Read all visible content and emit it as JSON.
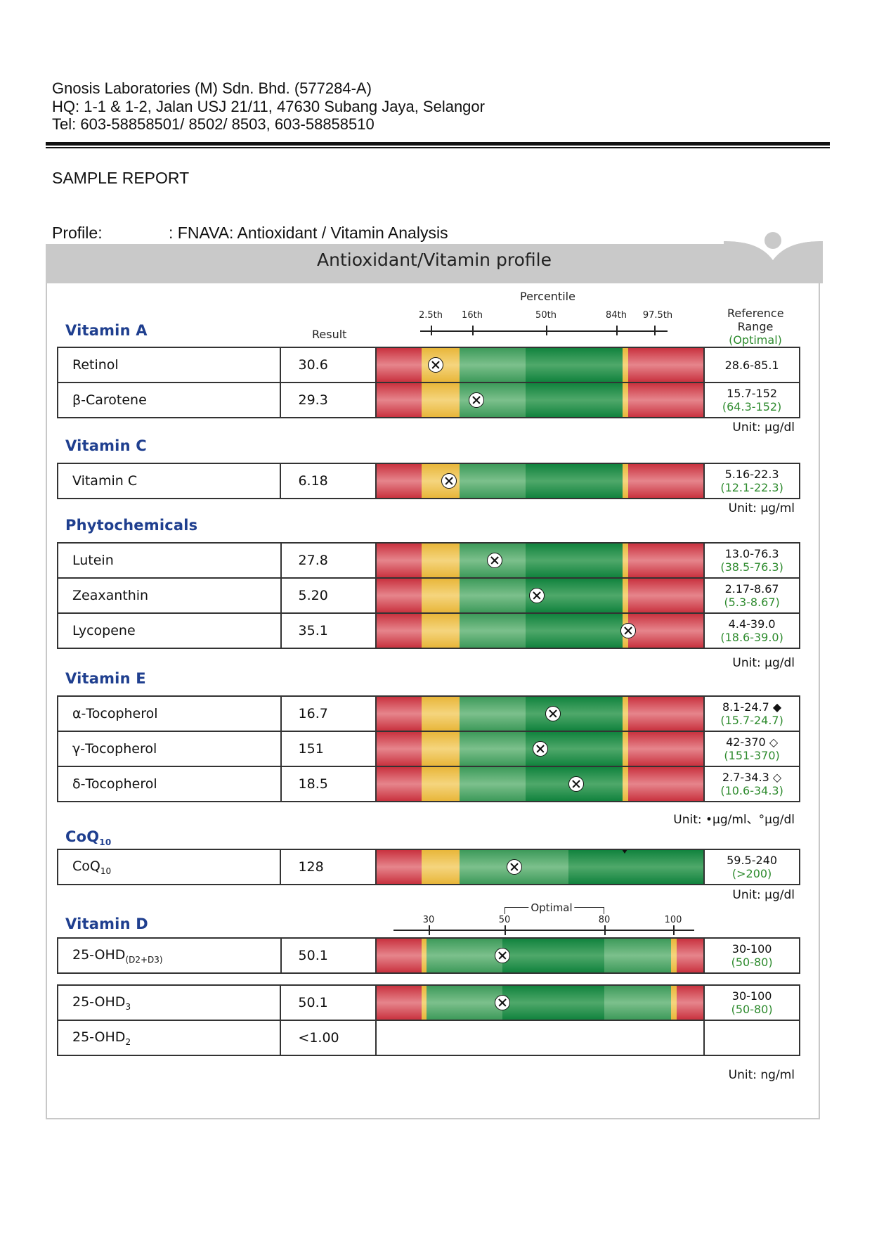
{
  "lab": {
    "name": "Gnosis Laboratories (M) Sdn. Bhd. (577284-A)",
    "address": "HQ: 1-1 & 1-2, Jalan USJ 21/11, 47630 Subang Jaya, Selangor",
    "tel": "Tel: 603-58858501/ 8502/ 8503, 603-58858510"
  },
  "report_title": "SAMPLE REPORT",
  "profile": {
    "label": "Profile:",
    "value": ":  FNAVA: Antioxidant / Vitamin Analysis"
  },
  "panel_title": "Antioxidant/Vitamin profile",
  "percentile_header": {
    "title": "Percentile",
    "ticks": [
      "2.5th",
      "16th",
      "50th",
      "84th",
      "97.5th"
    ],
    "result_label": "Result",
    "reference_label_1": "Reference",
    "reference_label_2": "Range",
    "reference_label_3": "(Optimal)"
  },
  "colors": {
    "section": "#1f3f8f",
    "red": "#c9323f",
    "yellow": "#e8b63a",
    "green_light": "#3d9a5a",
    "green_dark": "#11833e",
    "optimal_text": "#2e8b2e"
  },
  "sections": [
    {
      "title": "Vitamin A",
      "unit": "Unit:  μg/dl",
      "rows": [
        {
          "name": "Retinol",
          "result": "30.6",
          "ref": "28.6-85.1",
          "optimal": "",
          "marker_pct": 0.18
        },
        {
          "name": "β-Carotene",
          "result": "29.3",
          "ref": "15.7-152",
          "optimal": "(64.3-152)",
          "marker_pct": 0.305
        }
      ]
    },
    {
      "title": "Vitamin C",
      "unit": "Unit:  μg/ml",
      "rows": [
        {
          "name": "Vitamin C",
          "result": "6.18",
          "ref": "5.16-22.3",
          "optimal": "(12.1-22.3)",
          "marker_pct": 0.22
        }
      ]
    },
    {
      "title": "Phytochemicals",
      "unit": "Unit:  μg/dl",
      "rows": [
        {
          "name": "Lutein",
          "result": "27.8",
          "ref": "13.0-76.3",
          "optimal": "(38.5-76.3)",
          "marker_pct": 0.36
        },
        {
          "name": "Zeaxanthin",
          "result": "5.20",
          "ref": "2.17-8.67",
          "optimal": "(5.3-8.67)",
          "marker_pct": 0.49
        },
        {
          "name": "Lycopene",
          "result": "35.1",
          "ref": "4.4-39.0",
          "optimal": "(18.6-39.0)",
          "marker_pct": 0.77
        }
      ]
    },
    {
      "title": "Vitamin E",
      "unit": "Unit: •μg/ml、°μg/dl",
      "rows": [
        {
          "name": "α-Tocopherol",
          "result": "16.7",
          "ref": "8.1-24.7 ◆",
          "optimal": "(15.7-24.7)",
          "marker_pct": 0.54
        },
        {
          "name": "γ-Tocopherol",
          "result": "151",
          "ref": "42-370 ◇",
          "optimal": "(151-370)",
          "marker_pct": 0.5
        },
        {
          "name": "δ-Tocopherol",
          "result": "18.5",
          "ref": "2.7-34.3 ◇",
          "optimal": "(10.6-34.3)",
          "marker_pct": 0.61
        }
      ]
    },
    {
      "title": "CoQ",
      "title_sub": "10",
      "unit": "Unit:  μg/dl",
      "rows": [
        {
          "name": "CoQ",
          "name_sub": "10",
          "result": "128",
          "ref": "59.5-240",
          "optimal": "(>200)",
          "marker_pct": 0.42
        }
      ]
    }
  ],
  "vitamin_d": {
    "title": "Vitamin D",
    "scale_labels": [
      "30",
      "50",
      "80",
      "100"
    ],
    "optimal_label": "Optimal",
    "unit": "Unit: ng/ml",
    "rows": [
      {
        "name": "25-OHD",
        "name_sub": "(D2+D3)",
        "result": "50.1",
        "ref": "30-100",
        "optimal": "(50-80)",
        "marker_pct": 0.385
      },
      {
        "name": "25-OHD",
        "name_sub": "3",
        "result": "50.1",
        "ref": "30-100",
        "optimal": "(50-80)",
        "marker_pct": 0.385
      },
      {
        "name": "25-OHD",
        "name_sub": "2",
        "result": "<1.00",
        "ref": "",
        "optimal": "",
        "marker_pct": null
      }
    ]
  }
}
